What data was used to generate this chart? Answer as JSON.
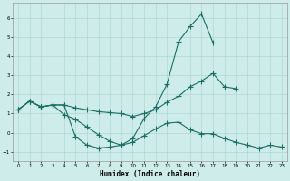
{
  "xlabel": "Humidex (Indice chaleur)",
  "background_color": "#ceecea",
  "grid_color": "#aed8d4",
  "line_color": "#1a6e64",
  "xlim": [
    -0.5,
    23.5
  ],
  "ylim": [
    -1.5,
    6.8
  ],
  "yticks": [
    -1,
    0,
    1,
    2,
    3,
    4,
    5,
    6
  ],
  "xticks": [
    0,
    1,
    2,
    3,
    4,
    5,
    6,
    7,
    8,
    9,
    10,
    11,
    12,
    13,
    14,
    15,
    16,
    17,
    18,
    19,
    20,
    21,
    22,
    23
  ],
  "line1_y": [
    1.2,
    1.65,
    1.35,
    1.45,
    1.45,
    -0.2,
    -0.65,
    -0.8,
    -0.75,
    -0.65,
    -0.3,
    0.75,
    1.35,
    2.55,
    4.75,
    5.55,
    6.2,
    4.7,
    null,
    null,
    null,
    null,
    null,
    null
  ],
  "line2_y": [
    1.2,
    1.65,
    1.35,
    1.45,
    1.45,
    1.3,
    1.2,
    1.1,
    1.05,
    1.0,
    0.85,
    1.0,
    1.2,
    1.6,
    1.9,
    2.4,
    2.7,
    3.1,
    2.4,
    2.3,
    null,
    null,
    null,
    null
  ],
  "line3_y": [
    1.2,
    1.65,
    1.35,
    1.45,
    0.95,
    0.7,
    0.3,
    -0.1,
    -0.45,
    -0.65,
    -0.5,
    -0.15,
    0.2,
    0.5,
    0.55,
    0.15,
    -0.05,
    -0.05,
    -0.3,
    -0.5,
    -0.65,
    -0.8,
    -0.65,
    -0.75
  ]
}
